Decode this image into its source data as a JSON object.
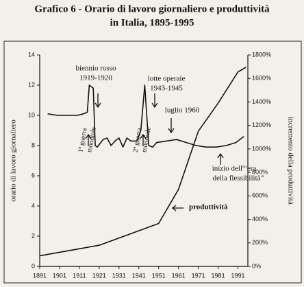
{
  "chart_data": {
    "type": "line",
    "title": "Grafico 6 - Orario di lavoro giornaliero e produttività",
    "subtitle": "in Italia, 1895-1995",
    "y_label": "orario di lavoro giornaliero",
    "y2_label": "incremento della produttività",
    "xlim": [
      1891,
      1996
    ],
    "xticks": [
      1891,
      1901,
      1911,
      1921,
      1931,
      1941,
      1951,
      1961,
      1971,
      1981,
      1991
    ],
    "ylim": [
      0,
      14
    ],
    "yticks": [
      0,
      2,
      4,
      6,
      8,
      10,
      12,
      14
    ],
    "y2lim": [
      0,
      1800
    ],
    "y2ticks": [
      {
        "value": 0,
        "label": "0%"
      },
      {
        "value": 200,
        "label": "200%"
      },
      {
        "value": 400,
        "label": "400%"
      },
      {
        "value": 600,
        "label": "600%"
      },
      {
        "value": 800,
        "label": "800%"
      },
      {
        "value": 1000,
        "label": "1000%"
      },
      {
        "value": 1200,
        "label": "1200%"
      },
      {
        "value": 1400,
        "label": "1400%"
      },
      {
        "value": 1600,
        "label": "1600%"
      },
      {
        "value": 1800,
        "label": "1800%"
      }
    ],
    "series": [
      {
        "color": "#111111",
        "x": [
          1895,
          1900,
          1905,
          1910,
          1913,
          1915,
          1916,
          1918,
          1919,
          1920,
          1923,
          1925,
          1927,
          1929,
          1931,
          1933,
          1935,
          1937,
          1940,
          1942,
          1944,
          1945,
          1946,
          1948,
          1950,
          1955,
          1960,
          1965,
          1970,
          1975,
          1980,
          1985,
          1990,
          1994
        ],
        "values": [
          10.1,
          10.0,
          10.0,
          10.0,
          10.1,
          10.2,
          12.0,
          11.8,
          8.0,
          7.9,
          8.4,
          8.5,
          8.0,
          8.3,
          8.5,
          7.9,
          8.5,
          8.3,
          8.3,
          9.0,
          12.0,
          10.0,
          8.0,
          7.9,
          8.2,
          8.3,
          8.4,
          8.2,
          8.0,
          7.9,
          7.9,
          8.0,
          8.2,
          8.6
        ]
      },
      {
        "name": "produttività",
        "color": "#111111",
        "axis": "y2",
        "x": [
          1891,
          1911,
          1921,
          1951,
          1961,
          1971,
          1981,
          1991,
          1995
        ],
        "values": [
          90,
          150,
          180,
          365,
          656,
          1150,
          1390,
          1655,
          1695
        ]
      }
    ],
    "annotations": [
      "biennio rosso",
      "1919-1920",
      "lotte operaie",
      "1943-1945",
      "luglio 1960",
      "1ª guerra",
      "mondiale",
      "2ª guerra",
      "mondiale",
      "inizio dell'“era",
      "della flessibilità”"
    ]
  }
}
